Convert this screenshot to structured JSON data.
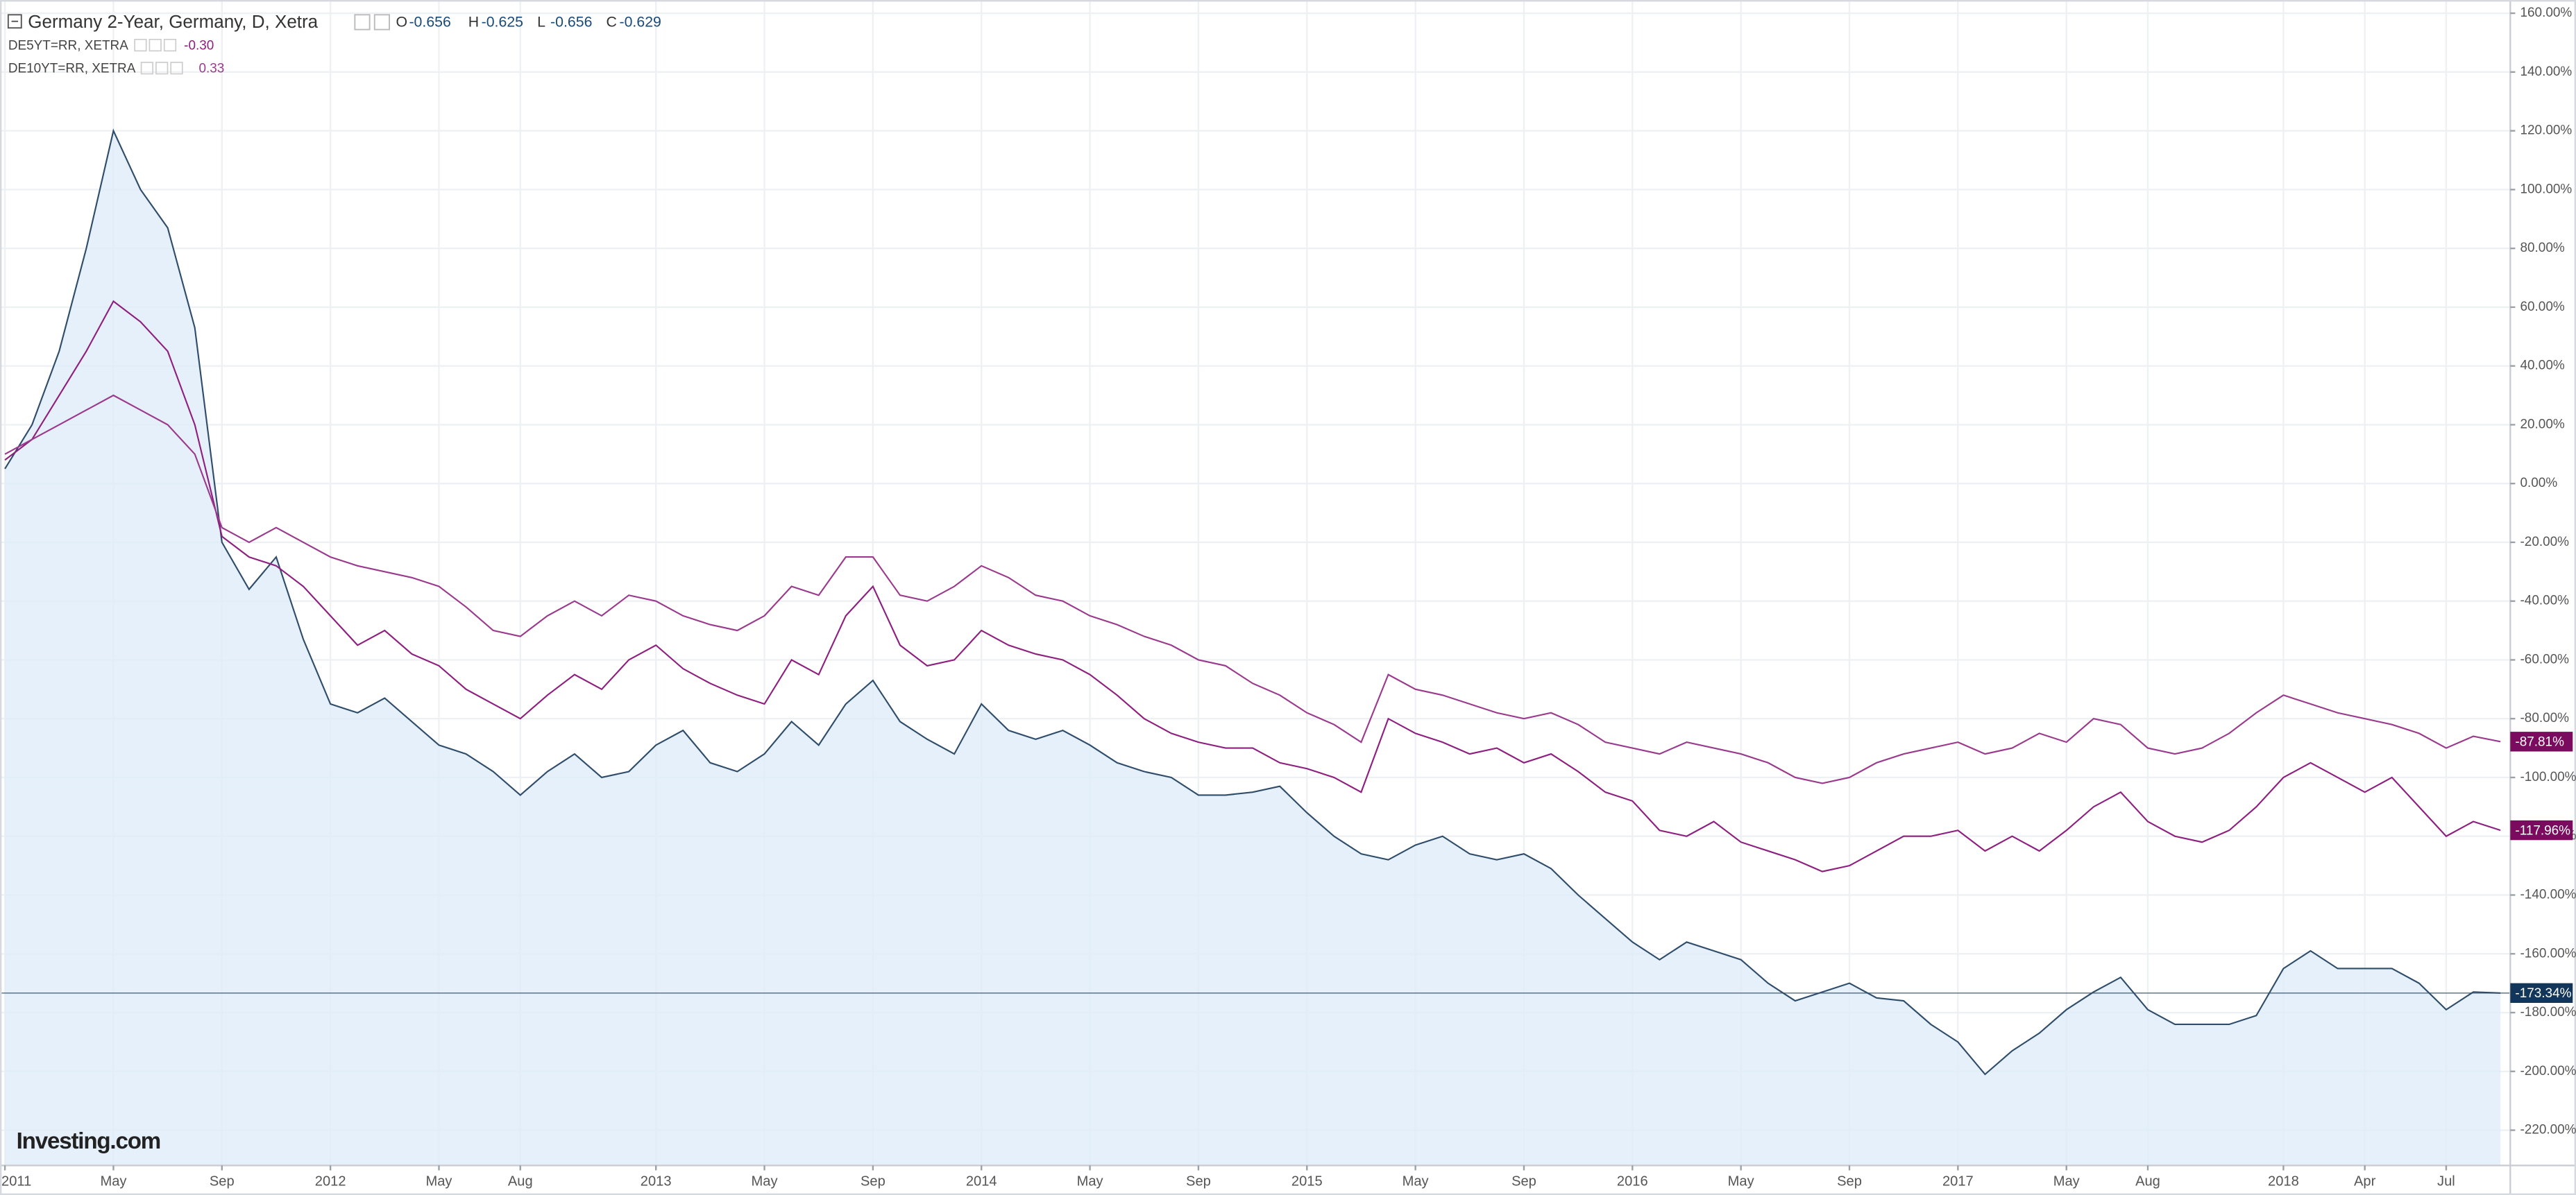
{
  "chart_data": {
    "type": "line",
    "title": "Germany 2-Year, Germany, D, Xetra",
    "quote": [
      {
        "label": "O",
        "value": "-0.656"
      },
      {
        "label": "H",
        "value": "-0.625"
      },
      {
        "label": "L",
        "value": "-0.656"
      },
      {
        "label": "C",
        "value": "-0.629"
      }
    ],
    "logo": "Investing.com",
    "x": [
      "2011-01",
      "2011-02",
      "2011-03",
      "2011-04",
      "2011-05",
      "2011-06",
      "2011-07",
      "2011-08",
      "2011-09",
      "2011-10",
      "2011-11",
      "2011-12",
      "2012-01",
      "2012-02",
      "2012-03",
      "2012-04",
      "2012-05",
      "2012-06",
      "2012-07",
      "2012-08",
      "2012-09",
      "2012-10",
      "2012-11",
      "2012-12",
      "2013-01",
      "2013-02",
      "2013-03",
      "2013-04",
      "2013-05",
      "2013-06",
      "2013-07",
      "2013-08",
      "2013-09",
      "2013-10",
      "2013-11",
      "2013-12",
      "2014-01",
      "2014-02",
      "2014-03",
      "2014-04",
      "2014-05",
      "2014-06",
      "2014-07",
      "2014-08",
      "2014-09",
      "2014-10",
      "2014-11",
      "2014-12",
      "2015-01",
      "2015-02",
      "2015-03",
      "2015-04",
      "2015-05",
      "2015-06",
      "2015-07",
      "2015-08",
      "2015-09",
      "2015-10",
      "2015-11",
      "2015-12",
      "2016-01",
      "2016-02",
      "2016-03",
      "2016-04",
      "2016-05",
      "2016-06",
      "2016-07",
      "2016-08",
      "2016-09",
      "2016-10",
      "2016-11",
      "2016-12",
      "2017-01",
      "2017-02",
      "2017-03",
      "2017-04",
      "2017-05",
      "2017-06",
      "2017-07",
      "2017-08",
      "2017-09",
      "2017-10",
      "2017-11",
      "2017-12",
      "2018-01",
      "2018-02",
      "2018-03",
      "2018-04",
      "2018-05",
      "2018-06",
      "2018-07",
      "2018-08",
      "2018-09"
    ],
    "series": [
      {
        "name": "Germany 2-Year, Germany, D, Xetra",
        "color": "#2f4d6b",
        "fill": "#dcebf8",
        "last_label": "-173.34%",
        "values": [
          5,
          20,
          45,
          80,
          120,
          100,
          87,
          53,
          -20,
          -36,
          -25,
          -53,
          -75,
          -78,
          -73,
          -81,
          -89,
          -92,
          -98,
          -106,
          -98,
          -92,
          -100,
          -98,
          -89,
          -84,
          -95,
          -98,
          -92,
          -81,
          -89,
          -75,
          -67,
          -81,
          -87,
          -92,
          -75,
          -84,
          -87,
          -84,
          -89,
          -95,
          -98,
          -100,
          -106,
          -106,
          -105,
          -103,
          -112,
          -120,
          -126,
          -128,
          -123,
          -120,
          -126,
          -128,
          -126,
          -131,
          -140,
          -148,
          -156,
          -162,
          -156,
          -159,
          -162,
          -170,
          -176,
          -173,
          -170,
          -175,
          -176,
          -184,
          -190,
          -201,
          -193,
          -187,
          -179,
          -173,
          -168,
          -179,
          -184,
          -184,
          -184,
          -181,
          -165,
          -159,
          -165,
          -165,
          -165,
          -170,
          -179,
          -173,
          -173.34
        ]
      },
      {
        "name": "DE5YT=RR, XETRA",
        "quote": "-0.30",
        "color": "#8e1f7f",
        "last_label": "-117.96%",
        "values": [
          8,
          15,
          30,
          45,
          62,
          55,
          45,
          20,
          -18,
          -25,
          -28,
          -35,
          -45,
          -55,
          -50,
          -58,
          -62,
          -70,
          -75,
          -80,
          -72,
          -65,
          -70,
          -60,
          -55,
          -63,
          -68,
          -72,
          -75,
          -60,
          -65,
          -45,
          -35,
          -55,
          -62,
          -60,
          -50,
          -55,
          -58,
          -60,
          -65,
          -72,
          -80,
          -85,
          -88,
          -90,
          -90,
          -95,
          -97,
          -100,
          -105,
          -80,
          -85,
          -88,
          -92,
          -90,
          -95,
          -92,
          -98,
          -105,
          -108,
          -118,
          -120,
          -115,
          -122,
          -125,
          -128,
          -132,
          -130,
          -125,
          -120,
          -120,
          -118,
          -125,
          -120,
          -125,
          -118,
          -110,
          -105,
          -115,
          -120,
          -122,
          -118,
          -110,
          -100,
          -95,
          -100,
          -105,
          -100,
          -110,
          -120,
          -115,
          -117.96
        ]
      },
      {
        "name": "DE10YT=RR, XETRA",
        "quote": "0.33",
        "color": "#9b3a8d",
        "last_label": "-87.81%",
        "values": [
          10,
          15,
          20,
          25,
          30,
          25,
          20,
          10,
          -15,
          -20,
          -15,
          -20,
          -25,
          -28,
          -30,
          -32,
          -35,
          -42,
          -50,
          -52,
          -45,
          -40,
          -45,
          -38,
          -40,
          -45,
          -48,
          -50,
          -45,
          -35,
          -38,
          -25,
          -25,
          -38,
          -40,
          -35,
          -28,
          -32,
          -38,
          -40,
          -45,
          -48,
          -52,
          -55,
          -60,
          -62,
          -68,
          -72,
          -78,
          -82,
          -88,
          -65,
          -70,
          -72,
          -75,
          -78,
          -80,
          -78,
          -82,
          -88,
          -90,
          -92,
          -88,
          -90,
          -92,
          -95,
          -100,
          -102,
          -100,
          -95,
          -92,
          -90,
          -88,
          -92,
          -90,
          -85,
          -88,
          -80,
          -82,
          -90,
          -92,
          -90,
          -85,
          -78,
          -72,
          -75,
          -78,
          -80,
          -82,
          -85,
          -90,
          -86,
          -87.81
        ]
      }
    ],
    "ylim": [
      -232,
      164.5
    ],
    "yticks": [
      {
        "value": 160,
        "label": "160.00%"
      },
      {
        "value": 140,
        "label": "140.00%"
      },
      {
        "value": 120,
        "label": "120.00%"
      },
      {
        "value": 100,
        "label": "100.00%"
      },
      {
        "value": 80,
        "label": "80.00%"
      },
      {
        "value": 60,
        "label": "60.00%"
      },
      {
        "value": 40,
        "label": "40.00%"
      },
      {
        "value": 20,
        "label": "20.00%"
      },
      {
        "value": 0,
        "label": "0.00%"
      },
      {
        "value": -20,
        "label": "-20.00%"
      },
      {
        "value": -40,
        "label": "-40.00%"
      },
      {
        "value": -60,
        "label": "-60.00%"
      },
      {
        "value": -80,
        "label": "-80.00%"
      },
      {
        "value": -100,
        "label": "-100.00%"
      },
      {
        "value": -120,
        "label": "-120.00%"
      },
      {
        "value": -140,
        "label": "-140.00%"
      },
      {
        "value": -160,
        "label": "-160.00%"
      },
      {
        "value": -180,
        "label": "-180.00%"
      },
      {
        "value": -200,
        "label": "-200.00%"
      },
      {
        "value": -220,
        "label": "-220.00%"
      }
    ],
    "xticks": [
      {
        "value": "2011-01",
        "label": "2011"
      },
      {
        "value": "2011-05",
        "label": "May"
      },
      {
        "value": "2011-09",
        "label": "Sep"
      },
      {
        "value": "2012-01",
        "label": "2012"
      },
      {
        "value": "2012-05",
        "label": "May"
      },
      {
        "value": "2012-08",
        "label": "Aug"
      },
      {
        "value": "2013-01",
        "label": "2013"
      },
      {
        "value": "2013-05",
        "label": "May"
      },
      {
        "value": "2013-09",
        "label": "Sep"
      },
      {
        "value": "2014-01",
        "label": "2014"
      },
      {
        "value": "2014-05",
        "label": "May"
      },
      {
        "value": "2014-09",
        "label": "Sep"
      },
      {
        "value": "2015-01",
        "label": "2015"
      },
      {
        "value": "2015-05",
        "label": "May"
      },
      {
        "value": "2015-09",
        "label": "Sep"
      },
      {
        "value": "2016-01",
        "label": "2016"
      },
      {
        "value": "2016-05",
        "label": "May"
      },
      {
        "value": "2016-09",
        "label": "Sep"
      },
      {
        "value": "2017-01",
        "label": "2017"
      },
      {
        "value": "2017-05",
        "label": "May"
      },
      {
        "value": "2017-08",
        "label": "Aug"
      },
      {
        "value": "2018-01",
        "label": "2018"
      },
      {
        "value": "2018-04",
        "label": "Apr"
      },
      {
        "value": "2018-07",
        "label": "Jul"
      }
    ],
    "grid": true
  }
}
